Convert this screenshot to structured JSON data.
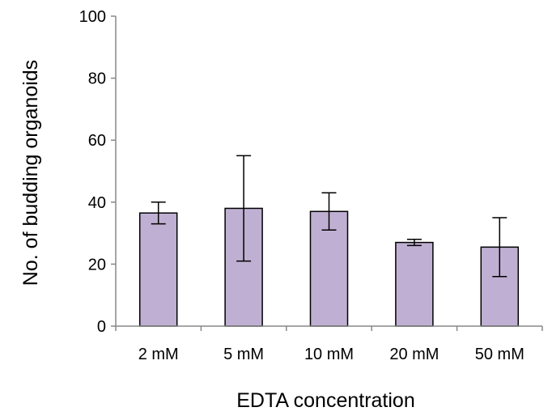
{
  "chart_data": {
    "type": "bar",
    "title": "",
    "xlabel": "EDTA concentration",
    "ylabel": "No. of budding organoids",
    "categories": [
      "2 mM",
      "5 mM",
      "10 mM",
      "20 mM",
      "50 mM"
    ],
    "series": [
      {
        "values": [
          36.5,
          38,
          37,
          27,
          25.5
        ],
        "error_low": [
          33,
          21,
          31,
          26,
          16
        ],
        "error_high": [
          40,
          55,
          43,
          28,
          35
        ]
      }
    ],
    "ylim": [
      0,
      100
    ],
    "yticks": [
      0,
      20,
      40,
      60,
      80,
      100
    ],
    "grid": false,
    "legend": "none",
    "bar_color": "#bfb0d3",
    "bar_edge_color": "#000000"
  }
}
